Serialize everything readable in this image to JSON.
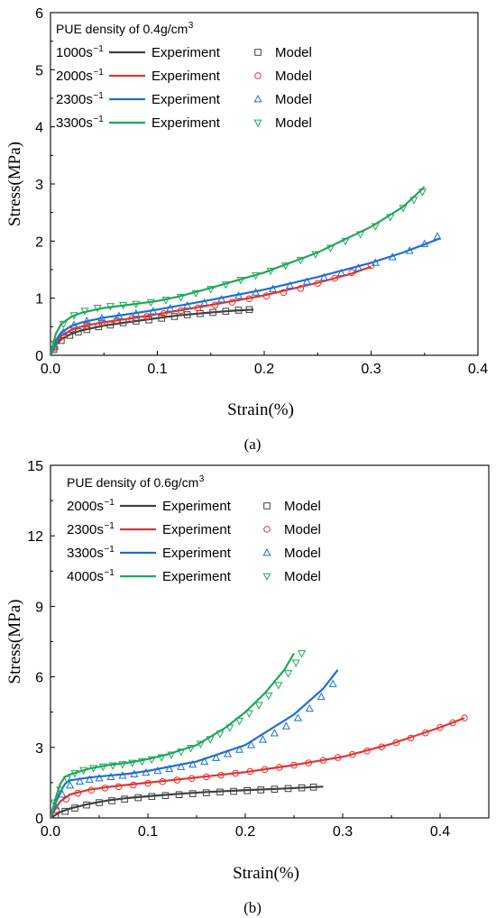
{
  "panels": [
    {
      "caption": "(a)",
      "legend_title": "PUE density of 0.4g/cm",
      "legend_title_sup": "3",
      "chart_data": {
        "type": "line",
        "xlabel": "Strain(%)",
        "ylabel": "Stress(MPa)",
        "xlim": [
          0,
          0.4
        ],
        "ylim": [
          0,
          6
        ],
        "xticks": [
          0,
          0.1,
          0.2,
          0.3,
          0.4
        ],
        "xtick_labels": [
          "0.0",
          "0.1",
          "0.2",
          "0.3",
          "0.4"
        ],
        "yticks": [
          0,
          1,
          2,
          3,
          4,
          5,
          6
        ],
        "ytick_labels": [
          "0",
          "1",
          "2",
          "3",
          "4",
          "5",
          "6"
        ],
        "grid": false,
        "legend_position": "top-left",
        "series": [
          {
            "rate": "1000s",
            "rate_sup": "−1",
            "exp_label": "Experiment",
            "model_label": "Model",
            "color": "#404040",
            "marker": "square",
            "experiment": {
              "x": [
                0,
                0.005,
                0.01,
                0.02,
                0.03,
                0.05,
                0.08,
                0.1,
                0.12,
                0.15,
                0.17,
                0.19
              ],
              "y": [
                0,
                0.18,
                0.28,
                0.38,
                0.44,
                0.52,
                0.6,
                0.65,
                0.7,
                0.75,
                0.78,
                0.8
              ]
            },
            "model": {
              "x": [
                0.003,
                0.01,
                0.018,
                0.026,
                0.034,
                0.045,
                0.056,
                0.068,
                0.08,
                0.092,
                0.104,
                0.116,
                0.128,
                0.14,
                0.152,
                0.164,
                0.176,
                0.186
              ],
              "y": [
                0.1,
                0.26,
                0.35,
                0.41,
                0.45,
                0.5,
                0.53,
                0.57,
                0.6,
                0.62,
                0.65,
                0.68,
                0.71,
                0.73,
                0.75,
                0.77,
                0.79,
                0.8
              ]
            }
          },
          {
            "rate": "2000s",
            "rate_sup": "−1",
            "exp_label": "Experiment",
            "model_label": "Model",
            "color": "#e8312f",
            "marker": "circle",
            "experiment": {
              "x": [
                0,
                0.005,
                0.01,
                0.02,
                0.03,
                0.05,
                0.08,
                0.1,
                0.15,
                0.2,
                0.25,
                0.28,
                0.3
              ],
              "y": [
                0,
                0.22,
                0.34,
                0.45,
                0.51,
                0.58,
                0.66,
                0.72,
                0.88,
                1.05,
                1.27,
                1.42,
                1.55
              ]
            },
            "model": {
              "x": [
                0.004,
                0.012,
                0.022,
                0.034,
                0.048,
                0.062,
                0.076,
                0.09,
                0.106,
                0.122,
                0.138,
                0.154,
                0.17,
                0.186,
                0.202,
                0.218,
                0.234,
                0.25,
                0.266,
                0.282,
                0.3
              ],
              "y": [
                0.13,
                0.34,
                0.47,
                0.52,
                0.57,
                0.61,
                0.64,
                0.68,
                0.73,
                0.78,
                0.83,
                0.88,
                0.93,
                0.99,
                1.04,
                1.1,
                1.17,
                1.26,
                1.35,
                1.45,
                1.57
              ]
            }
          },
          {
            "rate": "2300s",
            "rate_sup": "−1",
            "exp_label": "Experiment",
            "model_label": "Model",
            "color": "#1f6ed4",
            "marker": "triangle-up",
            "experiment": {
              "x": [
                0,
                0.005,
                0.01,
                0.02,
                0.03,
                0.05,
                0.08,
                0.1,
                0.15,
                0.2,
                0.25,
                0.3,
                0.33,
                0.365
              ],
              "y": [
                0,
                0.26,
                0.4,
                0.52,
                0.58,
                0.66,
                0.74,
                0.8,
                0.97,
                1.15,
                1.37,
                1.62,
                1.8,
                2.05
              ]
            },
            "model": {
              "x": [
                0.004,
                0.012,
                0.022,
                0.034,
                0.048,
                0.064,
                0.08,
                0.096,
                0.112,
                0.128,
                0.144,
                0.16,
                0.176,
                0.192,
                0.208,
                0.224,
                0.24,
                0.256,
                0.272,
                0.288,
                0.304,
                0.32,
                0.336,
                0.35,
                0.362
              ],
              "y": [
                0.15,
                0.4,
                0.53,
                0.6,
                0.65,
                0.69,
                0.73,
                0.77,
                0.82,
                0.87,
                0.92,
                0.98,
                1.04,
                1.1,
                1.16,
                1.22,
                1.29,
                1.36,
                1.44,
                1.53,
                1.62,
                1.72,
                1.83,
                1.95,
                2.08
              ]
            }
          },
          {
            "rate": "3300s",
            "rate_sup": "−1",
            "exp_label": "Experiment",
            "model_label": "Model",
            "color": "#1fa85a",
            "marker": "triangle-down",
            "experiment": {
              "x": [
                0,
                0.005,
                0.01,
                0.02,
                0.03,
                0.05,
                0.08,
                0.1,
                0.12,
                0.15,
                0.2,
                0.25,
                0.3,
                0.33,
                0.35
              ],
              "y": [
                0,
                0.38,
                0.55,
                0.68,
                0.75,
                0.83,
                0.9,
                0.95,
                1.03,
                1.18,
                1.45,
                1.8,
                2.25,
                2.6,
                2.95
              ]
            },
            "model": {
              "x": [
                0.004,
                0.012,
                0.022,
                0.032,
                0.044,
                0.056,
                0.068,
                0.08,
                0.094,
                0.108,
                0.122,
                0.136,
                0.15,
                0.164,
                0.178,
                0.192,
                0.206,
                0.22,
                0.234,
                0.248,
                0.262,
                0.276,
                0.29,
                0.304,
                0.318,
                0.33,
                0.34,
                0.348
              ],
              "y": [
                0.2,
                0.55,
                0.7,
                0.78,
                0.83,
                0.86,
                0.88,
                0.9,
                0.93,
                0.97,
                1.02,
                1.09,
                1.16,
                1.24,
                1.32,
                1.4,
                1.48,
                1.57,
                1.67,
                1.77,
                1.88,
                2.0,
                2.12,
                2.26,
                2.42,
                2.58,
                2.72,
                2.86
              ]
            }
          }
        ]
      }
    },
    {
      "caption": "(b)",
      "legend_title": "PUE density of 0.6g/cm",
      "legend_title_sup": "3",
      "chart_data": {
        "type": "line",
        "xlabel": "Strain(%)",
        "ylabel": "Stress(MPa)",
        "xlim": [
          0,
          0.45
        ],
        "ylim": [
          0,
          15
        ],
        "xticks": [
          0,
          0.1,
          0.2,
          0.3,
          0.4
        ],
        "xtick_labels": [
          "0.0",
          "0.1",
          "0.2",
          "0.3",
          "0.4"
        ],
        "yticks": [
          0,
          3,
          6,
          9,
          12,
          15
        ],
        "ytick_labels": [
          "0",
          "3",
          "6",
          "9",
          "12",
          "15"
        ],
        "grid": false,
        "legend_position": "top-left",
        "series": [
          {
            "rate": "2000s",
            "rate_sup": "−1",
            "exp_label": "Experiment",
            "model_label": "Model",
            "color": "#404040",
            "marker": "square",
            "experiment": {
              "x": [
                0,
                0.01,
                0.02,
                0.04,
                0.06,
                0.08,
                0.1,
                0.13,
                0.16,
                0.2,
                0.24,
                0.28
              ],
              "y": [
                0,
                0.25,
                0.4,
                0.6,
                0.75,
                0.85,
                0.92,
                1.02,
                1.1,
                1.18,
                1.25,
                1.33
              ]
            },
            "model": {
              "x": [
                0.005,
                0.015,
                0.025,
                0.037,
                0.05,
                0.063,
                0.076,
                0.09,
                0.104,
                0.118,
                0.132,
                0.146,
                0.16,
                0.174,
                0.188,
                0.202,
                0.216,
                0.23,
                0.244,
                0.258,
                0.27
              ],
              "y": [
                0.1,
                0.28,
                0.42,
                0.55,
                0.65,
                0.73,
                0.8,
                0.86,
                0.91,
                0.95,
                0.99,
                1.03,
                1.07,
                1.1,
                1.13,
                1.16,
                1.19,
                1.22,
                1.25,
                1.28,
                1.31
              ]
            }
          },
          {
            "rate": "2300s",
            "rate_sup": "−1",
            "exp_label": "Experiment",
            "model_label": "Model",
            "color": "#e8312f",
            "marker": "circle",
            "experiment": {
              "x": [
                0,
                0.005,
                0.01,
                0.02,
                0.04,
                0.06,
                0.1,
                0.15,
                0.2,
                0.25,
                0.3,
                0.35,
                0.4,
                0.425
              ],
              "y": [
                0,
                0.4,
                0.7,
                1.0,
                1.2,
                1.32,
                1.5,
                1.72,
                1.95,
                2.25,
                2.6,
                3.15,
                3.85,
                4.25
              ]
            },
            "model": {
              "x": [
                0.006,
                0.016,
                0.028,
                0.042,
                0.056,
                0.07,
                0.085,
                0.1,
                0.115,
                0.13,
                0.145,
                0.16,
                0.175,
                0.19,
                0.205,
                0.22,
                0.235,
                0.25,
                0.265,
                0.28,
                0.295,
                0.31,
                0.325,
                0.34,
                0.355,
                0.37,
                0.385,
                0.4,
                0.413,
                0.425
              ],
              "y": [
                0.35,
                0.8,
                1.05,
                1.18,
                1.27,
                1.33,
                1.4,
                1.47,
                1.54,
                1.61,
                1.68,
                1.75,
                1.82,
                1.9,
                1.98,
                2.06,
                2.15,
                2.24,
                2.34,
                2.45,
                2.57,
                2.7,
                2.85,
                3.02,
                3.2,
                3.4,
                3.62,
                3.85,
                4.05,
                4.25
              ]
            }
          },
          {
            "rate": "3300s",
            "rate_sup": "−1",
            "exp_label": "Experiment",
            "model_label": "Model",
            "color": "#1f6ed4",
            "marker": "triangle-up",
            "experiment": {
              "x": [
                0,
                0.005,
                0.01,
                0.015,
                0.02,
                0.04,
                0.06,
                0.08,
                0.1,
                0.15,
                0.2,
                0.25,
                0.28,
                0.295
              ],
              "y": [
                0,
                0.6,
                1.1,
                1.45,
                1.6,
                1.72,
                1.8,
                1.88,
                2.0,
                2.4,
                3.1,
                4.4,
                5.5,
                6.3
              ]
            },
            "model": {
              "x": [
                0.005,
                0.012,
                0.02,
                0.03,
                0.04,
                0.05,
                0.062,
                0.074,
                0.086,
                0.098,
                0.11,
                0.122,
                0.134,
                0.146,
                0.158,
                0.17,
                0.182,
                0.194,
                0.206,
                0.218,
                0.23,
                0.242,
                0.254,
                0.266,
                0.278,
                0.29
              ],
              "y": [
                0.5,
                1.0,
                1.38,
                1.55,
                1.63,
                1.69,
                1.74,
                1.8,
                1.86,
                1.93,
                2.0,
                2.08,
                2.17,
                2.27,
                2.4,
                2.55,
                2.72,
                2.9,
                3.1,
                3.33,
                3.6,
                3.9,
                4.25,
                4.65,
                5.15,
                5.7
              ]
            }
          },
          {
            "rate": "4000s",
            "rate_sup": "−1",
            "exp_label": "Experiment",
            "model_label": "Model",
            "color": "#1fa85a",
            "marker": "triangle-down",
            "experiment": {
              "x": [
                0,
                0.005,
                0.01,
                0.015,
                0.02,
                0.04,
                0.06,
                0.08,
                0.1,
                0.12,
                0.15,
                0.18,
                0.2,
                0.22,
                0.24,
                0.25
              ],
              "y": [
                0,
                0.8,
                1.45,
                1.75,
                1.85,
                2.1,
                2.25,
                2.35,
                2.5,
                2.7,
                3.1,
                3.85,
                4.5,
                5.3,
                6.3,
                7.0
              ]
            },
            "model": {
              "x": [
                0.004,
                0.01,
                0.017,
                0.025,
                0.034,
                0.044,
                0.054,
                0.064,
                0.074,
                0.084,
                0.094,
                0.104,
                0.114,
                0.124,
                0.134,
                0.144,
                0.154,
                0.164,
                0.174,
                0.184,
                0.194,
                0.204,
                0.214,
                0.224,
                0.234,
                0.244,
                0.252,
                0.258
              ],
              "y": [
                0.65,
                1.2,
                1.65,
                1.9,
                2.03,
                2.12,
                2.18,
                2.23,
                2.28,
                2.34,
                2.41,
                2.49,
                2.58,
                2.69,
                2.82,
                2.97,
                3.15,
                3.35,
                3.58,
                3.84,
                4.13,
                4.45,
                4.8,
                5.2,
                5.65,
                6.15,
                6.6,
                7.0
              ]
            }
          }
        ]
      }
    }
  ]
}
